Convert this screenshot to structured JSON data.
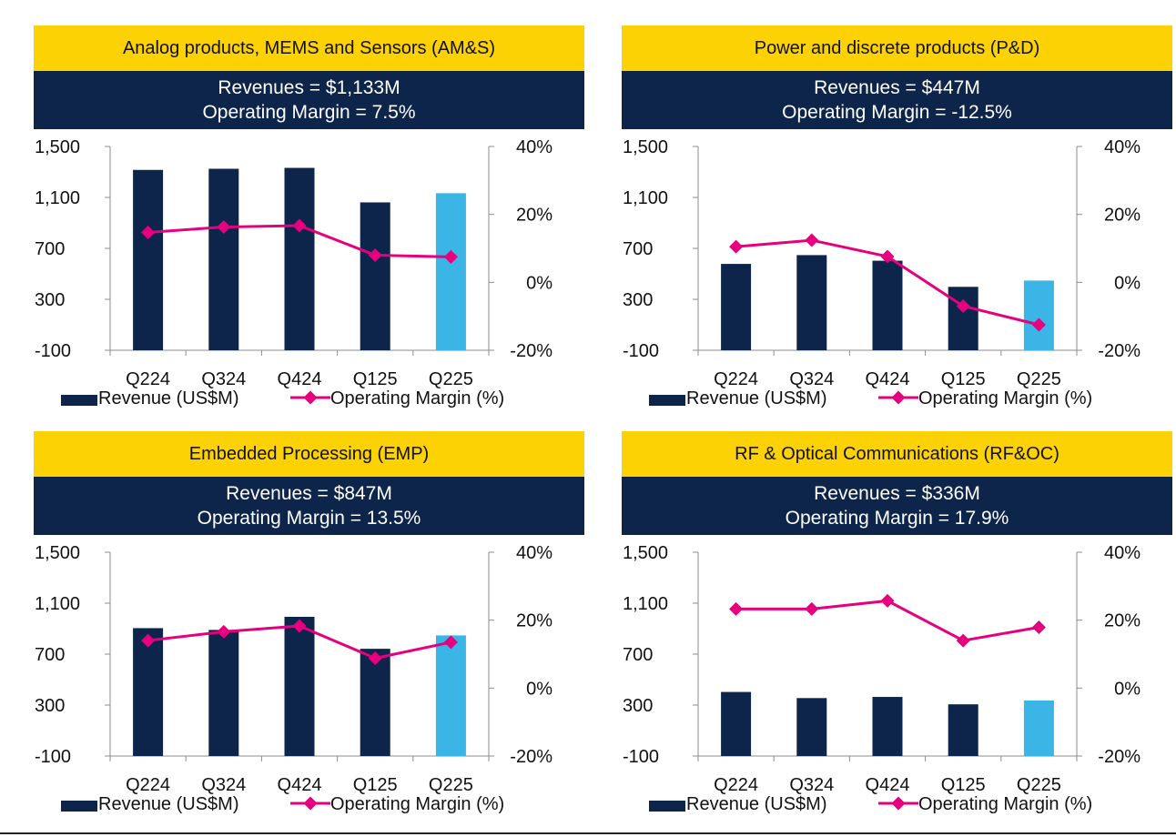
{
  "colors": {
    "title_bg": "#FDD205",
    "summary_bg": "#0E254B",
    "bar": "#0E254B",
    "bar_highlight": "#3BB4E6",
    "line": "#E6007E",
    "axis": "#8C8C8C"
  },
  "legend": {
    "revenue": "Revenue (US$M)",
    "margin": "Operating Margin (%)"
  },
  "chart_data": [
    {
      "type": "bar",
      "title": "Analog products, MEMS and Sensors (AM&S)",
      "summary": {
        "revenues": "Revenues = $1,133M",
        "margin": "Operating Margin = 7.5%"
      },
      "categories": [
        "Q224",
        "Q324",
        "Q424",
        "Q125",
        "Q225"
      ],
      "series": [
        {
          "name": "Revenue (US$M)",
          "axis": "left",
          "values": [
            1316,
            1325,
            1332,
            1061,
            1133
          ]
        },
        {
          "name": "Operating Margin (%)",
          "axis": "right",
          "values": [
            14.7,
            16.3,
            16.7,
            8.0,
            7.5
          ]
        }
      ],
      "y_left": {
        "ticks": [
          1500,
          1100,
          700,
          300,
          -100
        ],
        "tick_labels": [
          "1,500",
          "1,100",
          "700",
          "300",
          "-100"
        ],
        "range": [
          -100,
          1500
        ]
      },
      "y_right": {
        "ticks": [
          40,
          20,
          0,
          -20
        ],
        "tick_labels": [
          "40%",
          "20%",
          "0%",
          "-20%"
        ],
        "range": [
          -20,
          40
        ]
      }
    },
    {
      "type": "bar",
      "title": "Power and discrete products (P&D)",
      "summary": {
        "revenues": "Revenues = $447M",
        "margin": "Operating Margin = -12.5%"
      },
      "categories": [
        "Q224",
        "Q324",
        "Q424",
        "Q125",
        "Q225"
      ],
      "series": [
        {
          "name": "Revenue (US$M)",
          "axis": "left",
          "values": [
            578,
            647,
            603,
            398,
            447
          ]
        },
        {
          "name": "Operating Margin (%)",
          "axis": "right",
          "values": [
            10.5,
            12.4,
            7.6,
            -7.0,
            -12.5
          ]
        }
      ],
      "y_left": {
        "ticks": [
          1500,
          1100,
          700,
          300,
          -100
        ],
        "tick_labels": [
          "1,500",
          "1,100",
          "700",
          "300",
          "-100"
        ],
        "range": [
          -100,
          1500
        ]
      },
      "y_right": {
        "ticks": [
          40,
          20,
          0,
          -20
        ],
        "tick_labels": [
          "40%",
          "20%",
          "0%",
          "-20%"
        ],
        "range": [
          -20,
          40
        ]
      }
    },
    {
      "type": "bar",
      "title": "Embedded Processing (EMP)",
      "summary": {
        "revenues": "Revenues = $847M",
        "margin": "Operating Margin = 13.5%"
      },
      "categories": [
        "Q224",
        "Q324",
        "Q424",
        "Q125",
        "Q225"
      ],
      "series": [
        {
          "name": "Revenue (US$M)",
          "axis": "left",
          "values": [
            904,
            890,
            993,
            742,
            847
          ]
        },
        {
          "name": "Operating Margin (%)",
          "axis": "right",
          "values": [
            14.0,
            16.6,
            18.3,
            8.8,
            13.5
          ]
        }
      ],
      "y_left": {
        "ticks": [
          1500,
          1100,
          700,
          300,
          -100
        ],
        "tick_labels": [
          "1,500",
          "1,100",
          "700",
          "300",
          "-100"
        ],
        "range": [
          -100,
          1500
        ]
      },
      "y_right": {
        "ticks": [
          40,
          20,
          0,
          -20
        ],
        "tick_labels": [
          "40%",
          "20%",
          "0%",
          "-20%"
        ],
        "range": [
          -20,
          40
        ]
      }
    },
    {
      "type": "bar",
      "title": "RF & Optical Communications (RF&OC)",
      "summary": {
        "revenues": "Revenues = $336M",
        "margin": "Operating Margin = 17.9%"
      },
      "categories": [
        "Q224",
        "Q324",
        "Q424",
        "Q125",
        "Q225"
      ],
      "series": [
        {
          "name": "Revenue (US$M)",
          "axis": "left",
          "values": [
            403,
            355,
            364,
            306,
            336
          ]
        },
        {
          "name": "Operating Margin (%)",
          "axis": "right",
          "values": [
            23.3,
            23.3,
            25.7,
            14.0,
            17.9
          ]
        }
      ],
      "y_left": {
        "ticks": [
          1500,
          1100,
          700,
          300,
          -100
        ],
        "tick_labels": [
          "1,500",
          "1,100",
          "700",
          "300",
          "-100"
        ],
        "range": [
          -100,
          1500
        ]
      },
      "y_right": {
        "ticks": [
          40,
          20,
          0,
          -20
        ],
        "tick_labels": [
          "40%",
          "20%",
          "0%",
          "-20%"
        ],
        "range": [
          -20,
          40
        ]
      }
    }
  ]
}
